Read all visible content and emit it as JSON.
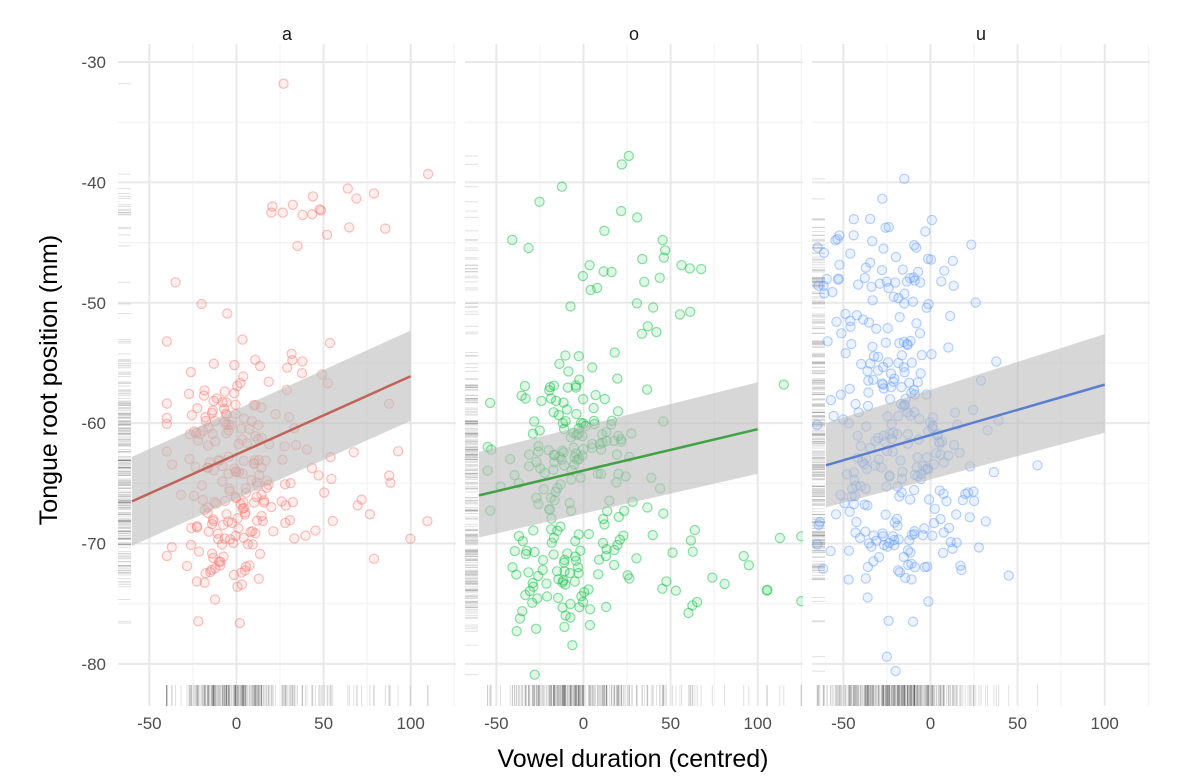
{
  "chart_data": {
    "type": "scatter",
    "xlabel": "Vowel duration (centred)",
    "ylabel": "Tongue root position (mm)",
    "xlim": [
      -68,
      126
    ],
    "ylim": [
      -83.5,
      -28.5
    ],
    "x_ticks": [
      -50,
      0,
      50,
      100
    ],
    "y_ticks": [
      -80,
      -70,
      -60,
      -50,
      -40,
      -30
    ],
    "grid": true,
    "legend": "none",
    "band_color": "#bdbdbd",
    "facets": [
      {
        "name": "a",
        "color": "#c0645a",
        "point_color": "#f8766d",
        "fit": {
          "x": [
            -60,
            100
          ],
          "y": [
            -66.5,
            -56.1
          ]
        },
        "band": {
          "x": [
            -60,
            100
          ],
          "lower": [
            -70.2,
            -59.8
          ],
          "upper": [
            -62.8,
            -52.3
          ]
        },
        "x_range": [
          -40,
          120
        ],
        "clusters": [
          {
            "x": -5,
            "y": -61,
            "sx": 18,
            "sy": 4,
            "n": 120
          },
          {
            "x": -8,
            "y": -70,
            "sx": 12,
            "sy": 2.5,
            "n": 55
          },
          {
            "x": 20,
            "y": -67,
            "sx": 18,
            "sy": 2.5,
            "n": 25
          },
          {
            "x": 50,
            "y": -42.5,
            "sx": 20,
            "sy": 1.3,
            "n": 16
          },
          {
            "x": 90,
            "y": -66.5,
            "sx": 18,
            "sy": 3,
            "n": 10
          },
          {
            "x": 40,
            "y": -62,
            "sx": 25,
            "sy": 5,
            "n": 20
          }
        ],
        "extra_points": [
          [
            27,
            -31.8
          ],
          [
            110,
            -39.3
          ],
          [
            -20,
            -50.1
          ],
          [
            -35,
            -48.3
          ]
        ]
      },
      {
        "name": "o",
        "color": "#41a144",
        "point_color": "#00ba38",
        "fit": {
          "x": [
            -60,
            100
          ],
          "y": [
            -66.0,
            -60.5
          ]
        },
        "band": {
          "x": [
            -60,
            100
          ],
          "lower": [
            -69.5,
            -64.2
          ],
          "upper": [
            -62.4,
            -56.6
          ]
        },
        "x_range": [
          -55,
          125
        ],
        "clusters": [
          {
            "x": -5,
            "y": -61,
            "sx": 20,
            "sy": 3.5,
            "n": 110
          },
          {
            "x": -15,
            "y": -72,
            "sx": 15,
            "sy": 3,
            "n": 70
          },
          {
            "x": 20,
            "y": -69,
            "sx": 25,
            "sy": 3.5,
            "n": 35
          },
          {
            "x": 30,
            "y": -47,
            "sx": 30,
            "sy": 3,
            "n": 30
          },
          {
            "x": 80,
            "y": -73,
            "sx": 25,
            "sy": 2,
            "n": 14
          }
        ],
        "extra_points": [
          [
            26,
            -37.8
          ],
          [
            22,
            -38.5
          ],
          [
            -28,
            -80.9
          ],
          [
            115,
            -56.8
          ],
          [
            125,
            -69.4
          ]
        ]
      },
      {
        "name": "u",
        "color": "#5b7fd0",
        "point_color": "#619cff",
        "fit": {
          "x": [
            -60,
            100
          ],
          "y": [
            -63.5,
            -56.8
          ]
        },
        "band": {
          "x": [
            -60,
            100
          ],
          "lower": [
            -67.0,
            -60.8
          ],
          "upper": [
            -60.0,
            -52.6
          ]
        },
        "x_range": [
          -65,
          70
        ],
        "clusters": [
          {
            "x": -20,
            "y": -60,
            "sx": 20,
            "sy": 5,
            "n": 160
          },
          {
            "x": -25,
            "y": -47,
            "sx": 22,
            "sy": 2.5,
            "n": 60
          },
          {
            "x": -25,
            "y": -69,
            "sx": 20,
            "sy": 3,
            "n": 60
          },
          {
            "x": 15,
            "y": -64,
            "sx": 25,
            "sy": 5,
            "n": 30
          }
        ],
        "extra_points": [
          [
            -15,
            -39.7
          ],
          [
            -20,
            -80.6
          ],
          [
            -25,
            -79.4
          ],
          [
            -10,
            -76.5
          ]
        ]
      }
    ]
  }
}
